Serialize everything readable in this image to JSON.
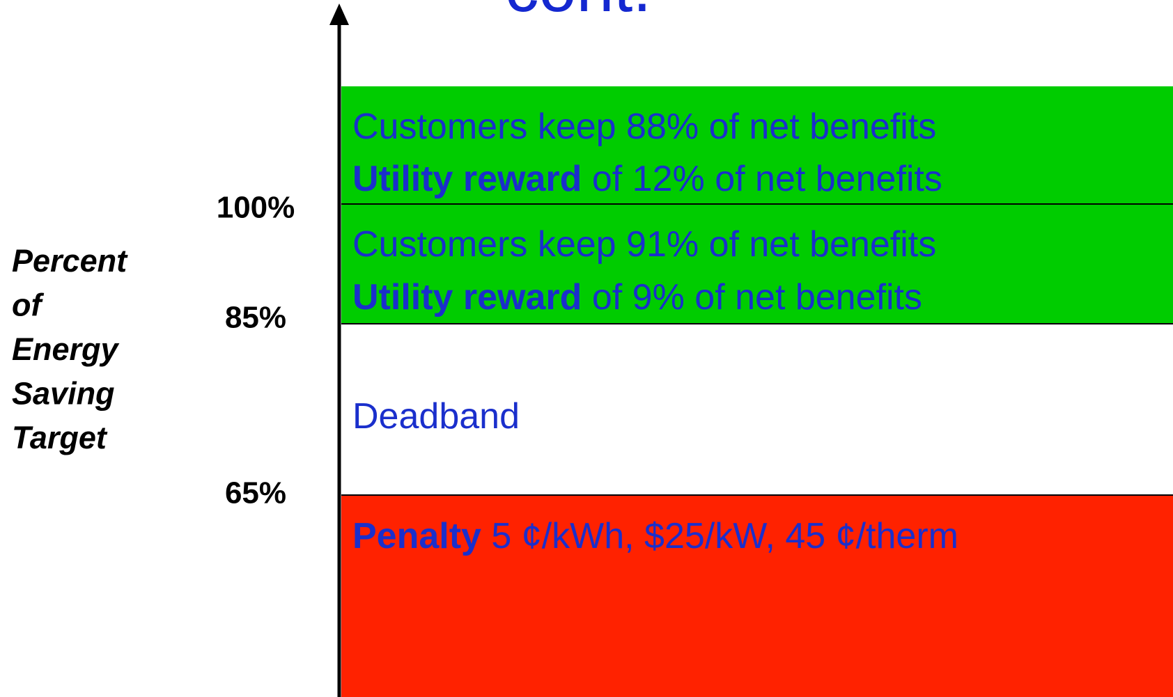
{
  "title": "cont.",
  "axis_label": [
    "Percent",
    "of",
    "Energy",
    "Saving",
    "Target"
  ],
  "ticks": [
    "100%",
    "85%",
    "65%"
  ],
  "bands": [
    {
      "customers": "Customers keep 88% of net benefits",
      "reward_bold": "Utility reward",
      "reward_rest": " of 12% of net benefits"
    },
    {
      "customers": "Customers keep 91% of net benefits",
      "reward_bold": "Utility reward",
      "reward_rest": " of 9% of net benefits"
    },
    {
      "label": "Deadband"
    },
    {
      "label_bold": "Penalty",
      "label_rest": " 5 ¢/kWh, $25/kW, 45 ¢/therm"
    }
  ]
}
